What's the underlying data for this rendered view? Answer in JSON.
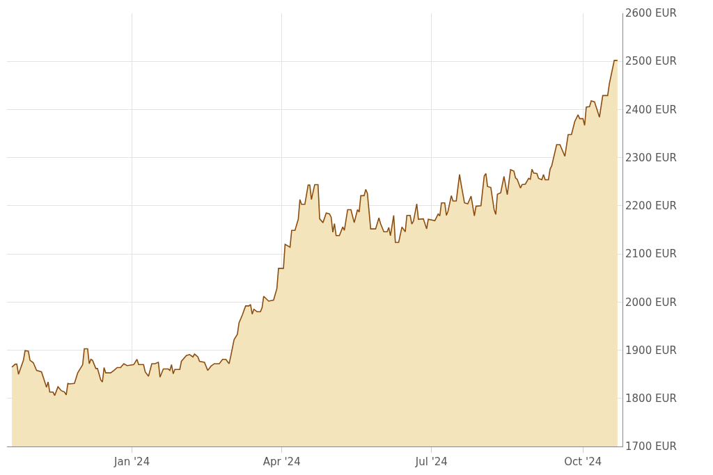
{
  "chart_data": {
    "type": "area",
    "x": [
      "2023-10-20",
      "2023-10-22",
      "2023-10-23",
      "2023-10-24",
      "2023-10-27",
      "2023-10-28",
      "2023-10-30",
      "2023-10-31",
      "2023-11-02",
      "2023-11-04",
      "2023-11-07",
      "2023-11-09",
      "2023-11-10",
      "2023-11-11",
      "2023-11-12",
      "2023-11-14",
      "2023-11-15",
      "2023-11-17",
      "2023-11-19",
      "2023-11-21",
      "2023-11-22",
      "2023-11-23",
      "2023-11-24",
      "2023-11-27",
      "2023-11-29",
      "2023-12-02",
      "2023-12-03",
      "2023-12-05",
      "2023-12-06",
      "2023-12-07",
      "2023-12-08",
      "2023-12-10",
      "2023-12-11",
      "2023-12-13",
      "2023-12-14",
      "2023-12-15",
      "2023-12-16",
      "2023-12-19",
      "2023-12-21",
      "2023-12-23",
      "2023-12-25",
      "2023-12-27",
      "2023-12-29",
      "2024-01-02",
      "2024-01-04",
      "2024-01-05",
      "2024-01-08",
      "2024-01-09",
      "2024-01-11",
      "2024-01-13",
      "2024-01-15",
      "2024-01-17",
      "2024-01-18",
      "2024-01-20",
      "2024-01-23",
      "2024-01-24",
      "2024-01-25",
      "2024-01-26",
      "2024-01-27",
      "2024-01-30",
      "2024-01-31",
      "2024-02-03",
      "2024-02-05",
      "2024-02-07",
      "2024-02-08",
      "2024-02-10",
      "2024-02-11",
      "2024-02-14",
      "2024-02-16",
      "2024-02-18",
      "2024-02-20",
      "2024-02-23",
      "2024-02-25",
      "2024-02-27",
      "2024-02-29",
      "2024-03-01",
      "2024-03-03",
      "2024-03-05",
      "2024-03-06",
      "2024-03-08",
      "2024-03-10",
      "2024-03-12",
      "2024-03-13",
      "2024-03-14",
      "2024-03-15",
      "2024-03-17",
      "2024-03-19",
      "2024-03-20",
      "2024-03-21",
      "2024-03-24",
      "2024-03-27",
      "2024-03-29",
      "2024-03-30",
      "2024-04-02",
      "2024-04-03",
      "2024-04-06",
      "2024-04-07",
      "2024-04-09",
      "2024-04-11",
      "2024-04-12",
      "2024-04-13",
      "2024-04-15",
      "2024-04-17",
      "2024-04-18",
      "2024-04-19",
      "2024-04-21",
      "2024-04-23",
      "2024-04-24",
      "2024-04-26",
      "2024-04-28",
      "2024-04-30",
      "2024-05-01",
      "2024-05-02",
      "2024-05-03",
      "2024-05-04",
      "2024-05-06",
      "2024-05-08",
      "2024-05-09",
      "2024-05-11",
      "2024-05-13",
      "2024-05-15",
      "2024-05-17",
      "2024-05-18",
      "2024-05-19",
      "2024-05-21",
      "2024-05-22",
      "2024-05-23",
      "2024-05-25",
      "2024-05-28",
      "2024-05-30",
      "2024-05-31",
      "2024-06-02",
      "2024-06-04",
      "2024-06-05",
      "2024-06-06",
      "2024-06-08",
      "2024-06-09",
      "2024-06-11",
      "2024-06-13",
      "2024-06-15",
      "2024-06-16",
      "2024-06-18",
      "2024-06-19",
      "2024-06-20",
      "2024-06-22",
      "2024-06-23",
      "2024-06-26",
      "2024-06-28",
      "2024-06-29",
      "2024-07-03",
      "2024-07-05",
      "2024-07-06",
      "2024-07-07",
      "2024-07-09",
      "2024-07-10",
      "2024-07-11",
      "2024-07-13",
      "2024-07-14",
      "2024-07-16",
      "2024-07-18",
      "2024-07-19",
      "2024-07-21",
      "2024-07-23",
      "2024-07-25",
      "2024-07-27",
      "2024-07-28",
      "2024-07-31",
      "2024-08-02",
      "2024-08-03",
      "2024-08-04",
      "2024-08-06",
      "2024-08-08",
      "2024-08-09",
      "2024-08-10",
      "2024-08-12",
      "2024-08-14",
      "2024-08-16",
      "2024-08-18",
      "2024-08-20",
      "2024-08-21",
      "2024-08-22",
      "2024-08-24",
      "2024-08-25",
      "2024-08-27",
      "2024-08-29",
      "2024-08-30",
      "2024-08-31",
      "2024-09-01",
      "2024-09-03",
      "2024-09-04",
      "2024-09-06",
      "2024-09-07",
      "2024-09-08",
      "2024-09-10",
      "2024-09-11",
      "2024-09-12",
      "2024-09-15",
      "2024-09-17",
      "2024-09-20",
      "2024-09-22",
      "2024-09-24",
      "2024-09-26",
      "2024-09-28",
      "2024-09-29",
      "2024-10-01",
      "2024-10-02",
      "2024-10-03",
      "2024-10-05",
      "2024-10-06",
      "2024-10-08",
      "2024-10-10",
      "2024-10-11",
      "2024-10-13",
      "2024-10-16",
      "2024-10-17",
      "2024-10-20",
      "2024-10-22"
    ],
    "series": [
      {
        "color": "#8b4c10",
        "values": [
          1865,
          1871,
          1871,
          1850,
          1879,
          1899,
          1898,
          1879,
          1874,
          1858,
          1855,
          1834,
          1823,
          1834,
          1813,
          1813,
          1806,
          1824,
          1816,
          1813,
          1807,
          1831,
          1830,
          1831,
          1853,
          1870,
          1903,
          1903,
          1872,
          1881,
          1879,
          1862,
          1862,
          1838,
          1834,
          1864,
          1853,
          1853,
          1858,
          1864,
          1864,
          1872,
          1868,
          1870,
          1881,
          1870,
          1870,
          1855,
          1846,
          1872,
          1872,
          1875,
          1844,
          1861,
          1861,
          1858,
          1870,
          1851,
          1860,
          1860,
          1877,
          1889,
          1891,
          1886,
          1892,
          1886,
          1877,
          1875,
          1858,
          1867,
          1872,
          1872,
          1881,
          1881,
          1872,
          1888,
          1922,
          1933,
          1957,
          1973,
          1992,
          1992,
          1995,
          1975,
          1985,
          1980,
          1980,
          1988,
          2012,
          2002,
          2004,
          2028,
          2070,
          2070,
          2120,
          2114,
          2149,
          2149,
          2172,
          2213,
          2203,
          2203,
          2243,
          2243,
          2213,
          2244,
          2244,
          2173,
          2165,
          2185,
          2183,
          2176,
          2145,
          2163,
          2138,
          2138,
          2156,
          2149,
          2192,
          2192,
          2165,
          2192,
          2187,
          2221,
          2221,
          2234,
          2226,
          2152,
          2152,
          2175,
          2163,
          2146,
          2146,
          2155,
          2138,
          2180,
          2124,
          2124,
          2156,
          2146,
          2180,
          2180,
          2162,
          2168,
          2204,
          2172,
          2173,
          2152,
          2172,
          2169,
          2183,
          2179,
          2206,
          2206,
          2180,
          2189,
          2221,
          2210,
          2210,
          2265,
          2244,
          2206,
          2204,
          2220,
          2179,
          2199,
          2200,
          2262,
          2267,
          2240,
          2238,
          2192,
          2182,
          2224,
          2227,
          2261,
          2223,
          2275,
          2272,
          2258,
          2255,
          2237,
          2244,
          2245,
          2257,
          2255,
          2276,
          2268,
          2267,
          2257,
          2254,
          2265,
          2254,
          2254,
          2276,
          2283,
          2327,
          2327,
          2303,
          2348,
          2348,
          2375,
          2389,
          2381,
          2381,
          2367,
          2405,
          2406,
          2418,
          2416,
          2395,
          2384,
          2429,
          2429,
          2453,
          2502,
          2502
        ]
      }
    ],
    "xlim": [
      "2023-10-17",
      "2024-10-25"
    ],
    "xticks": [
      {
        "value": "2024-01-01",
        "label": "Jan '24"
      },
      {
        "value": "2024-04-01",
        "label": "Apr '24"
      },
      {
        "value": "2024-07-01",
        "label": "Jul '24"
      },
      {
        "value": "2024-10-01",
        "label": "Oct '24"
      }
    ],
    "ylim": [
      1700,
      2600
    ],
    "yticks": [
      {
        "value": 1700,
        "label": "1700 EUR"
      },
      {
        "value": 1800,
        "label": "1800 EUR"
      },
      {
        "value": 1900,
        "label": "1900 EUR"
      },
      {
        "value": 2000,
        "label": "2000 EUR"
      },
      {
        "value": 2100,
        "label": "2100 EUR"
      },
      {
        "value": 2200,
        "label": "2200 EUR"
      },
      {
        "value": 2300,
        "label": "2300 EUR"
      },
      {
        "value": 2400,
        "label": "2400 EUR"
      },
      {
        "value": 2500,
        "label": "2500 EUR"
      },
      {
        "value": 2600,
        "label": "2600 EUR"
      }
    ],
    "grid": true
  }
}
